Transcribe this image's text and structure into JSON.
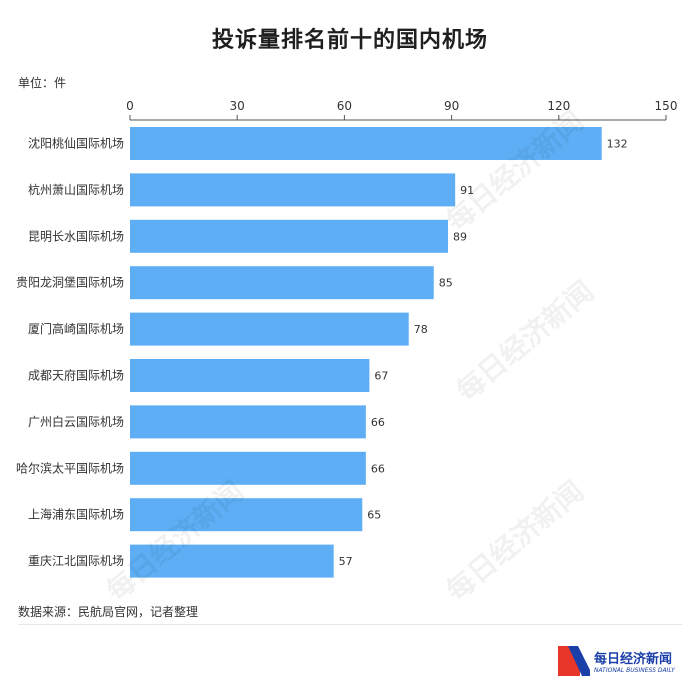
{
  "title": "投诉量排名前十的国内机场",
  "unit_label": "单位：件",
  "source_note": "数据来源：民航局官网，记者整理",
  "brand": {
    "name": "每日经济新闻",
    "tagline": "NATIONAL BUSINESS DAILY",
    "logo_icon": "nbd-n-logo-icon",
    "colors": {
      "blue": "#1a3fa8",
      "red": "#e8362a"
    }
  },
  "watermark": "每日经济新闻",
  "bar_color": "#5daef4",
  "chart_data": {
    "type": "bar",
    "orientation": "horizontal",
    "categories": [
      "沈阳桃仙国际机场",
      "杭州萧山国际机场",
      "昆明长水国际机场",
      "贵阳龙洞堡国际机场",
      "厦门高崎国际机场",
      "成都天府国际机场",
      "广州白云国际机场",
      "哈尔滨太平国际机场",
      "上海浦东国际机场",
      "重庆江北国际机场"
    ],
    "values": [
      132,
      91,
      89,
      85,
      78,
      67,
      66,
      66,
      65,
      57
    ],
    "xlim": [
      0,
      150
    ],
    "ticks": [
      0,
      30,
      60,
      90,
      120,
      150
    ],
    "axis_position": "top",
    "grid": false,
    "legend": "none"
  }
}
